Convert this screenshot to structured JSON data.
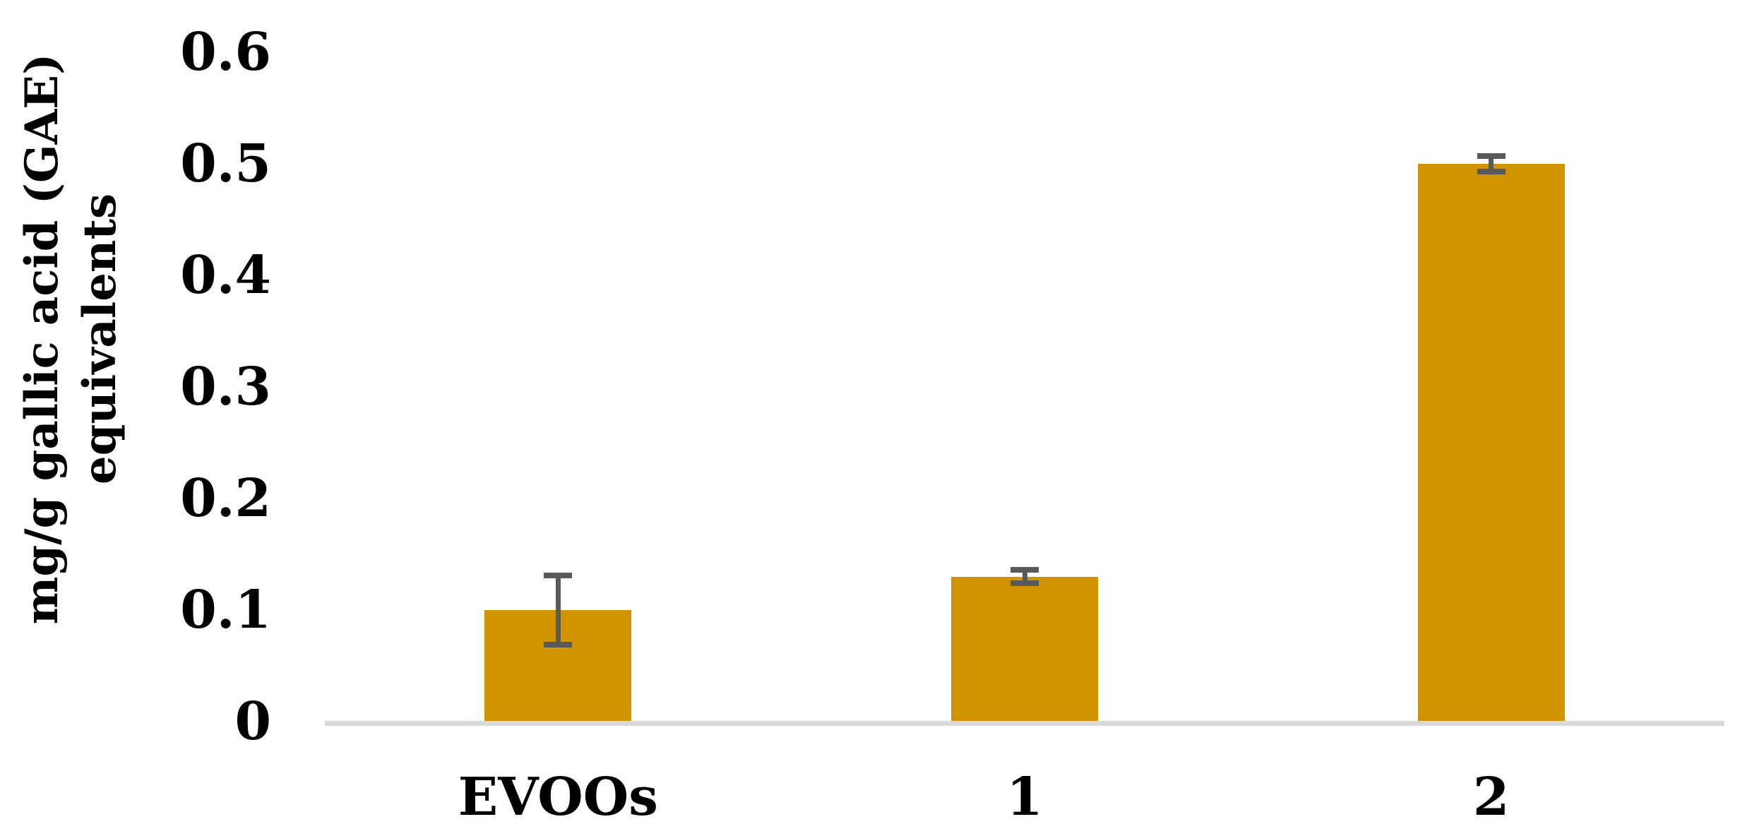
{
  "chart_data": {
    "type": "bar",
    "title": "",
    "categories": [
      "EVOOs",
      "1",
      "2"
    ],
    "values": [
      0.1,
      0.13,
      0.5
    ],
    "error_bars": [
      0.031,
      0.006,
      0.007
    ],
    "ylabel_line1": "mg/g gallic acid (GAE)",
    "ylabel_line2": "equivalents",
    "ytick_labels": [
      "0",
      "0.1",
      "0.2",
      "0.3",
      "0.4",
      "0.5",
      "0.6"
    ],
    "ytick_values": [
      0,
      0.1,
      0.2,
      0.3,
      0.4,
      0.5,
      0.6
    ],
    "ylim": [
      0,
      0.6
    ],
    "grid": false,
    "legend": false,
    "bar_color": "#D09400",
    "error_color": "#595959",
    "axis_line_color": "#D9D9D9",
    "text_color": "#000000",
    "background_color": "#FFFFFF"
  }
}
